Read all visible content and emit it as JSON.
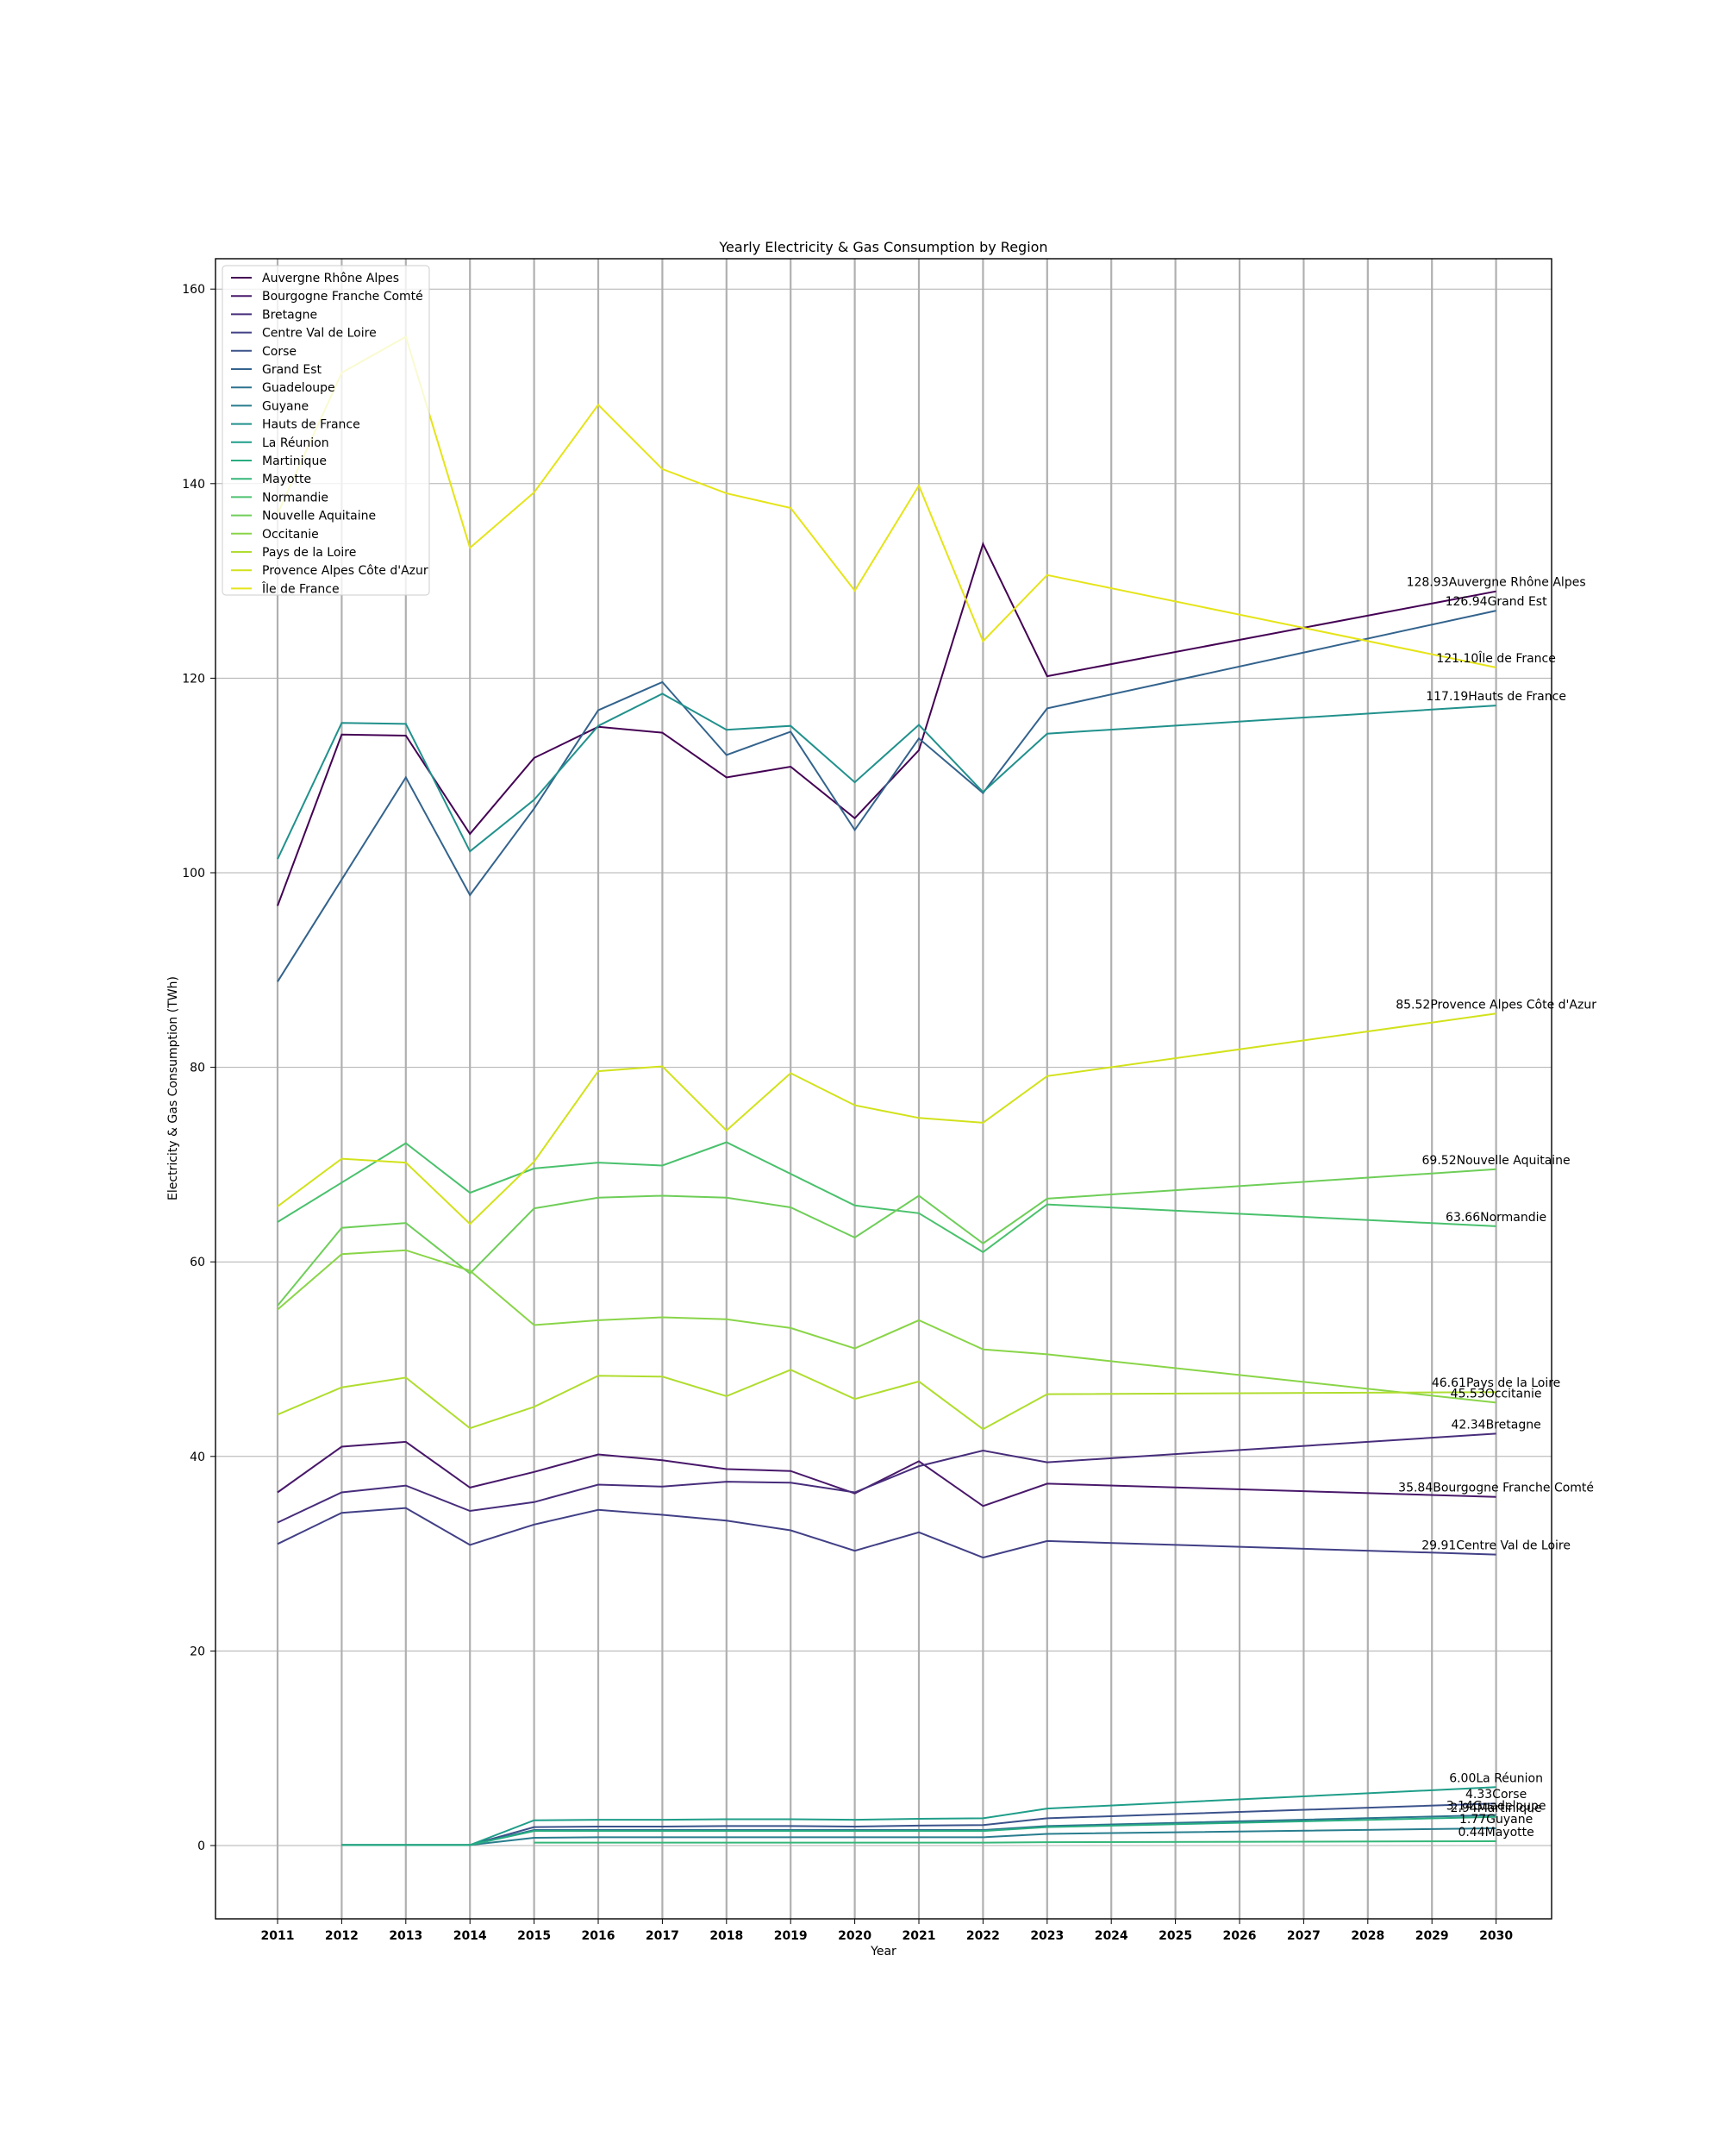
{
  "chart_data": {
    "type": "line",
    "title": "Yearly Electricity & Gas Consumption by Region",
    "xlabel": "Year",
    "ylabel": "Electricity & Gas Consumption (TWh)",
    "x": [
      "2011",
      "2012",
      "2013",
      "2014",
      "2015",
      "2016",
      "2017",
      "2018",
      "2019",
      "2020",
      "2021",
      "2022",
      "2023",
      "2024",
      "2025",
      "2026",
      "2027",
      "2028",
      "2029",
      "2030"
    ],
    "ylim": [
      -7.8,
      162.8
    ],
    "yticks": [
      "0",
      "20",
      "40",
      "60",
      "80",
      "100",
      "120",
      "140",
      "160"
    ],
    "grid": true,
    "legend_position": "upper-left",
    "series": [
      {
        "name": "Auvergne Rhône Alpes",
        "color": "#440154",
        "label": "128.93Auvergne Rhône Alpes",
        "points": [
          [
            2011,
            96.6
          ],
          [
            2012,
            114.2
          ],
          [
            2013,
            114.1
          ],
          [
            2014,
            104.0
          ],
          [
            2015,
            111.8
          ],
          [
            2016,
            115.0
          ],
          [
            2017,
            114.4
          ],
          [
            2018,
            109.8
          ],
          [
            2019,
            110.9
          ],
          [
            2020,
            105.6
          ],
          [
            2021,
            112.6
          ],
          [
            2022,
            133.8
          ],
          [
            2023,
            120.2
          ],
          [
            2030,
            128.93
          ]
        ]
      },
      {
        "name": "Bourgogne Franche Comté",
        "color": "#48186a",
        "label": "35.84Bourgogne Franche Comté",
        "points": [
          [
            2011,
            36.3
          ],
          [
            2012,
            41.0
          ],
          [
            2013,
            41.5
          ],
          [
            2014,
            36.8
          ],
          [
            2015,
            38.4
          ],
          [
            2016,
            40.2
          ],
          [
            2017,
            39.6
          ],
          [
            2018,
            38.7
          ],
          [
            2019,
            38.5
          ],
          [
            2020,
            36.2
          ],
          [
            2021,
            39.5
          ],
          [
            2022,
            34.9
          ],
          [
            2023,
            37.2
          ],
          [
            2030,
            35.84
          ]
        ]
      },
      {
        "name": "Bretagne",
        "color": "#472d7b",
        "label": "42.34Bretagne",
        "points": [
          [
            2011,
            33.2
          ],
          [
            2012,
            36.3
          ],
          [
            2013,
            37.0
          ],
          [
            2014,
            34.4
          ],
          [
            2015,
            35.3
          ],
          [
            2016,
            37.1
          ],
          [
            2017,
            36.9
          ],
          [
            2018,
            37.4
          ],
          [
            2019,
            37.3
          ],
          [
            2020,
            36.3
          ],
          [
            2021,
            39.0
          ],
          [
            2022,
            40.6
          ],
          [
            2023,
            39.4
          ],
          [
            2030,
            42.34
          ]
        ]
      },
      {
        "name": "Centre Val de Loire",
        "color": "#424086",
        "label": "29.91Centre Val de Loire",
        "points": [
          [
            2011,
            31.0
          ],
          [
            2012,
            34.2
          ],
          [
            2013,
            34.7
          ],
          [
            2014,
            30.9
          ],
          [
            2015,
            33.0
          ],
          [
            2016,
            34.5
          ],
          [
            2017,
            34.0
          ],
          [
            2018,
            33.4
          ],
          [
            2019,
            32.4
          ],
          [
            2020,
            30.3
          ],
          [
            2021,
            32.2
          ],
          [
            2022,
            29.6
          ],
          [
            2023,
            31.3
          ],
          [
            2030,
            29.91
          ]
        ]
      },
      {
        "name": "Corse",
        "color": "#3b528b",
        "label": "4.33Corse",
        "points": [
          [
            2012,
            0.05
          ],
          [
            2013,
            0.05
          ],
          [
            2014,
            0.05
          ],
          [
            2015,
            1.9
          ],
          [
            2016,
            1.95
          ],
          [
            2017,
            1.95
          ],
          [
            2018,
            2.0
          ],
          [
            2019,
            2.0
          ],
          [
            2020,
            1.95
          ],
          [
            2021,
            2.05
          ],
          [
            2022,
            2.1
          ],
          [
            2023,
            2.8
          ],
          [
            2030,
            4.33
          ]
        ]
      },
      {
        "name": "Grand Est",
        "color": "#33638d",
        "label": "126.94Grand Est",
        "points": [
          [
            2011,
            88.8
          ],
          [
            2013,
            109.8
          ],
          [
            2014,
            97.7
          ],
          [
            2015,
            106.6
          ],
          [
            2016,
            116.7
          ],
          [
            2017,
            119.6
          ],
          [
            2018,
            112.1
          ],
          [
            2019,
            114.5
          ],
          [
            2020,
            104.4
          ],
          [
            2021,
            113.8
          ],
          [
            2022,
            108.2
          ],
          [
            2023,
            116.9
          ],
          [
            2030,
            126.94
          ]
        ]
      },
      {
        "name": "Guadeloupe",
        "color": "#2c728e",
        "label": "3.14Guadeloupe",
        "points": [
          [
            2012,
            0.05
          ],
          [
            2013,
            0.05
          ],
          [
            2014,
            0.05
          ],
          [
            2015,
            1.6
          ],
          [
            2016,
            1.6
          ],
          [
            2017,
            1.6
          ],
          [
            2018,
            1.6
          ],
          [
            2019,
            1.6
          ],
          [
            2020,
            1.6
          ],
          [
            2021,
            1.6
          ],
          [
            2022,
            1.6
          ],
          [
            2023,
            2.0
          ],
          [
            2030,
            3.14
          ]
        ]
      },
      {
        "name": "Guyane",
        "color": "#287d8e",
        "label": "1.77Guyane",
        "points": [
          [
            2012,
            0.05
          ],
          [
            2013,
            0.05
          ],
          [
            2014,
            0.05
          ],
          [
            2015,
            0.8
          ],
          [
            2016,
            0.85
          ],
          [
            2017,
            0.85
          ],
          [
            2018,
            0.85
          ],
          [
            2019,
            0.85
          ],
          [
            2020,
            0.85
          ],
          [
            2021,
            0.85
          ],
          [
            2022,
            0.85
          ],
          [
            2023,
            1.2
          ],
          [
            2030,
            1.77
          ]
        ]
      },
      {
        "name": "Hauts de France",
        "color": "#21918c",
        "label": "117.19Hauts de France",
        "points": [
          [
            2011,
            101.4
          ],
          [
            2012,
            115.4
          ],
          [
            2013,
            115.3
          ],
          [
            2014,
            102.2
          ],
          [
            2015,
            107.5
          ],
          [
            2016,
            115.1
          ],
          [
            2017,
            118.4
          ],
          [
            2018,
            114.7
          ],
          [
            2019,
            115.1
          ],
          [
            2020,
            109.3
          ],
          [
            2021,
            115.2
          ],
          [
            2022,
            108.3
          ],
          [
            2023,
            114.3
          ],
          [
            2030,
            117.19
          ]
        ]
      },
      {
        "name": "La Réunion",
        "color": "#1f9e89",
        "label": "6.00La Réunion",
        "points": [
          [
            2012,
            0.05
          ],
          [
            2013,
            0.05
          ],
          [
            2014,
            0.05
          ],
          [
            2015,
            2.6
          ],
          [
            2016,
            2.65
          ],
          [
            2017,
            2.65
          ],
          [
            2018,
            2.7
          ],
          [
            2019,
            2.7
          ],
          [
            2020,
            2.65
          ],
          [
            2021,
            2.75
          ],
          [
            2022,
            2.8
          ],
          [
            2023,
            3.8
          ],
          [
            2030,
            6.0
          ]
        ]
      },
      {
        "name": "Martinique",
        "color": "#27ad81",
        "label": "2.94Martinique",
        "points": [
          [
            2012,
            0.05
          ],
          [
            2013,
            0.05
          ],
          [
            2014,
            0.05
          ],
          [
            2015,
            1.5
          ],
          [
            2016,
            1.5
          ],
          [
            2017,
            1.5
          ],
          [
            2018,
            1.5
          ],
          [
            2019,
            1.5
          ],
          [
            2020,
            1.5
          ],
          [
            2021,
            1.5
          ],
          [
            2022,
            1.5
          ],
          [
            2023,
            1.9
          ],
          [
            2030,
            2.94
          ]
        ]
      },
      {
        "name": "Mayotte",
        "color": "#35b779",
        "label": "0.44Mayotte",
        "points": [
          [
            2015,
            0.3
          ],
          [
            2016,
            0.3
          ],
          [
            2017,
            0.3
          ],
          [
            2018,
            0.3
          ],
          [
            2019,
            0.3
          ],
          [
            2020,
            0.3
          ],
          [
            2021,
            0.3
          ],
          [
            2022,
            0.3
          ],
          [
            2023,
            0.35
          ],
          [
            2030,
            0.44
          ]
        ]
      },
      {
        "name": "Normandie",
        "color": "#4ac16d",
        "label": "63.66Normandie",
        "points": [
          [
            2011,
            64.1
          ],
          [
            2013,
            72.2
          ],
          [
            2014,
            67.1
          ],
          [
            2015,
            69.6
          ],
          [
            2016,
            70.2
          ],
          [
            2017,
            69.9
          ],
          [
            2018,
            72.3
          ],
          [
            2020,
            65.8
          ],
          [
            2021,
            65.0
          ],
          [
            2022,
            61.0
          ],
          [
            2023,
            65.9
          ],
          [
            2030,
            63.66
          ]
        ]
      },
      {
        "name": "Nouvelle Aquitaine",
        "color": "#6ece58",
        "label": "69.52Nouvelle Aquitaine",
        "points": [
          [
            2011,
            55.5
          ],
          [
            2012,
            63.5
          ],
          [
            2013,
            64.0
          ],
          [
            2014,
            58.8
          ],
          [
            2015,
            65.5
          ],
          [
            2016,
            66.6
          ],
          [
            2017,
            66.8
          ],
          [
            2018,
            66.6
          ],
          [
            2019,
            65.6
          ],
          [
            2020,
            62.5
          ],
          [
            2021,
            66.8
          ],
          [
            2022,
            61.9
          ],
          [
            2023,
            66.5
          ],
          [
            2030,
            69.52
          ]
        ]
      },
      {
        "name": "Occitanie",
        "color": "#89d548",
        "label": "45.53Occitanie",
        "points": [
          [
            2011,
            55.1
          ],
          [
            2012,
            60.8
          ],
          [
            2013,
            61.2
          ],
          [
            2014,
            59.1
          ],
          [
            2015,
            53.5
          ],
          [
            2016,
            54.0
          ],
          [
            2017,
            54.3
          ],
          [
            2018,
            54.1
          ],
          [
            2019,
            53.2
          ],
          [
            2020,
            51.1
          ],
          [
            2021,
            54.0
          ],
          [
            2022,
            51.0
          ],
          [
            2023,
            50.5
          ],
          [
            2030,
            45.53
          ]
        ]
      },
      {
        "name": "Pays de la Loire",
        "color": "#b0dd2f",
        "label": "46.61Pays de la Loire",
        "points": [
          [
            2011,
            44.3
          ],
          [
            2012,
            47.1
          ],
          [
            2013,
            48.1
          ],
          [
            2014,
            42.9
          ],
          [
            2015,
            45.1
          ],
          [
            2016,
            48.3
          ],
          [
            2017,
            48.2
          ],
          [
            2018,
            46.2
          ],
          [
            2019,
            48.9
          ],
          [
            2020,
            45.9
          ],
          [
            2021,
            47.7
          ],
          [
            2022,
            42.8
          ],
          [
            2023,
            46.4
          ],
          [
            2030,
            46.61
          ]
        ]
      },
      {
        "name": "Provence Alpes Côte d'Azur",
        "color": "#d2e21b",
        "label": "85.52Provence Alpes Côte d'Azur",
        "points": [
          [
            2011,
            65.7
          ],
          [
            2012,
            70.6
          ],
          [
            2013,
            70.2
          ],
          [
            2014,
            63.9
          ],
          [
            2015,
            70.3
          ],
          [
            2016,
            79.6
          ],
          [
            2017,
            80.1
          ],
          [
            2018,
            73.5
          ],
          [
            2019,
            79.4
          ],
          [
            2020,
            76.1
          ],
          [
            2021,
            74.8
          ],
          [
            2022,
            74.3
          ],
          [
            2023,
            79.1
          ],
          [
            2030,
            85.52
          ]
        ]
      },
      {
        "name": "Île de France",
        "color": "#e5e419",
        "label": "121.10Île de France",
        "points": [
          [
            2011,
            136.9
          ],
          [
            2012,
            151.4
          ],
          [
            2013,
            155.1
          ],
          [
            2014,
            133.4
          ],
          [
            2015,
            139.1
          ],
          [
            2016,
            148.1
          ],
          [
            2017,
            141.5
          ],
          [
            2018,
            139.0
          ],
          [
            2019,
            137.5
          ],
          [
            2020,
            129.0
          ],
          [
            2021,
            139.8
          ],
          [
            2022,
            123.8
          ],
          [
            2023,
            130.6
          ],
          [
            2030,
            121.1
          ]
        ]
      }
    ]
  }
}
